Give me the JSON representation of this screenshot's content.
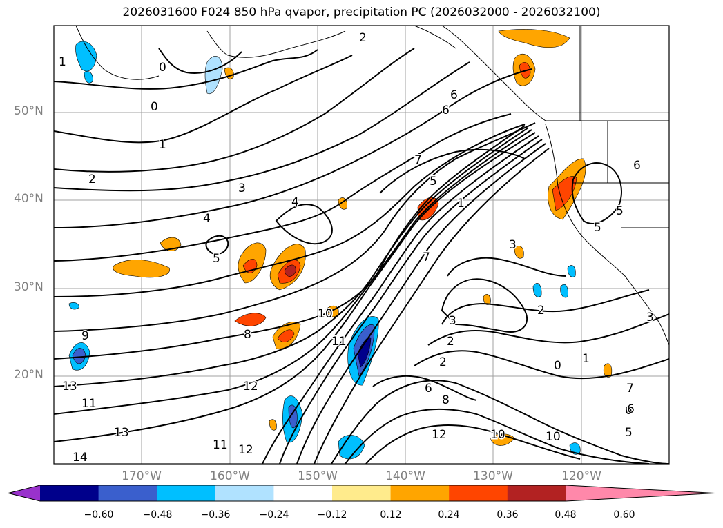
{
  "title": "2026031600 F024 850 hPa qvapor, precipitation PC (2026032000 - 2026032100)",
  "map": {
    "lat_labels": [
      "50°N",
      "40°N",
      "30°N",
      "20°N"
    ],
    "lon_labels": [
      "170°W",
      "160°W",
      "150°W",
      "140°W",
      "130°W",
      "120°W"
    ],
    "grid_color": "#a0a0a0",
    "contour_color": "#000000",
    "contour_labels": [
      "1",
      "2",
      "0",
      "0",
      "1",
      "2",
      "3",
      "4",
      "4",
      "5",
      "6",
      "6",
      "7",
      "5",
      "1",
      "6",
      "7",
      "9",
      "8",
      "10",
      "11",
      "12",
      "13",
      "11",
      "13",
      "14",
      "11",
      "12",
      "10",
      "8",
      "6",
      "3",
      "2",
      "2",
      "0",
      "1",
      "3",
      "3",
      "5",
      "5",
      "6",
      "2",
      "12",
      "10",
      "7",
      "6",
      "5"
    ]
  },
  "colorbar": {
    "ticks": [
      "−0.60",
      "−0.48",
      "−0.36",
      "−0.24",
      "−0.12",
      "0.12",
      "0.24",
      "0.36",
      "0.48",
      "0.60"
    ],
    "colors": [
      "#9932cc",
      "#00008b",
      "#3a5fcd",
      "#00bfff",
      "#b0e2ff",
      "#ffffff",
      "#ffeb8c",
      "#ffa500",
      "#ff4500",
      "#b22222",
      "#ff88aa"
    ]
  }
}
